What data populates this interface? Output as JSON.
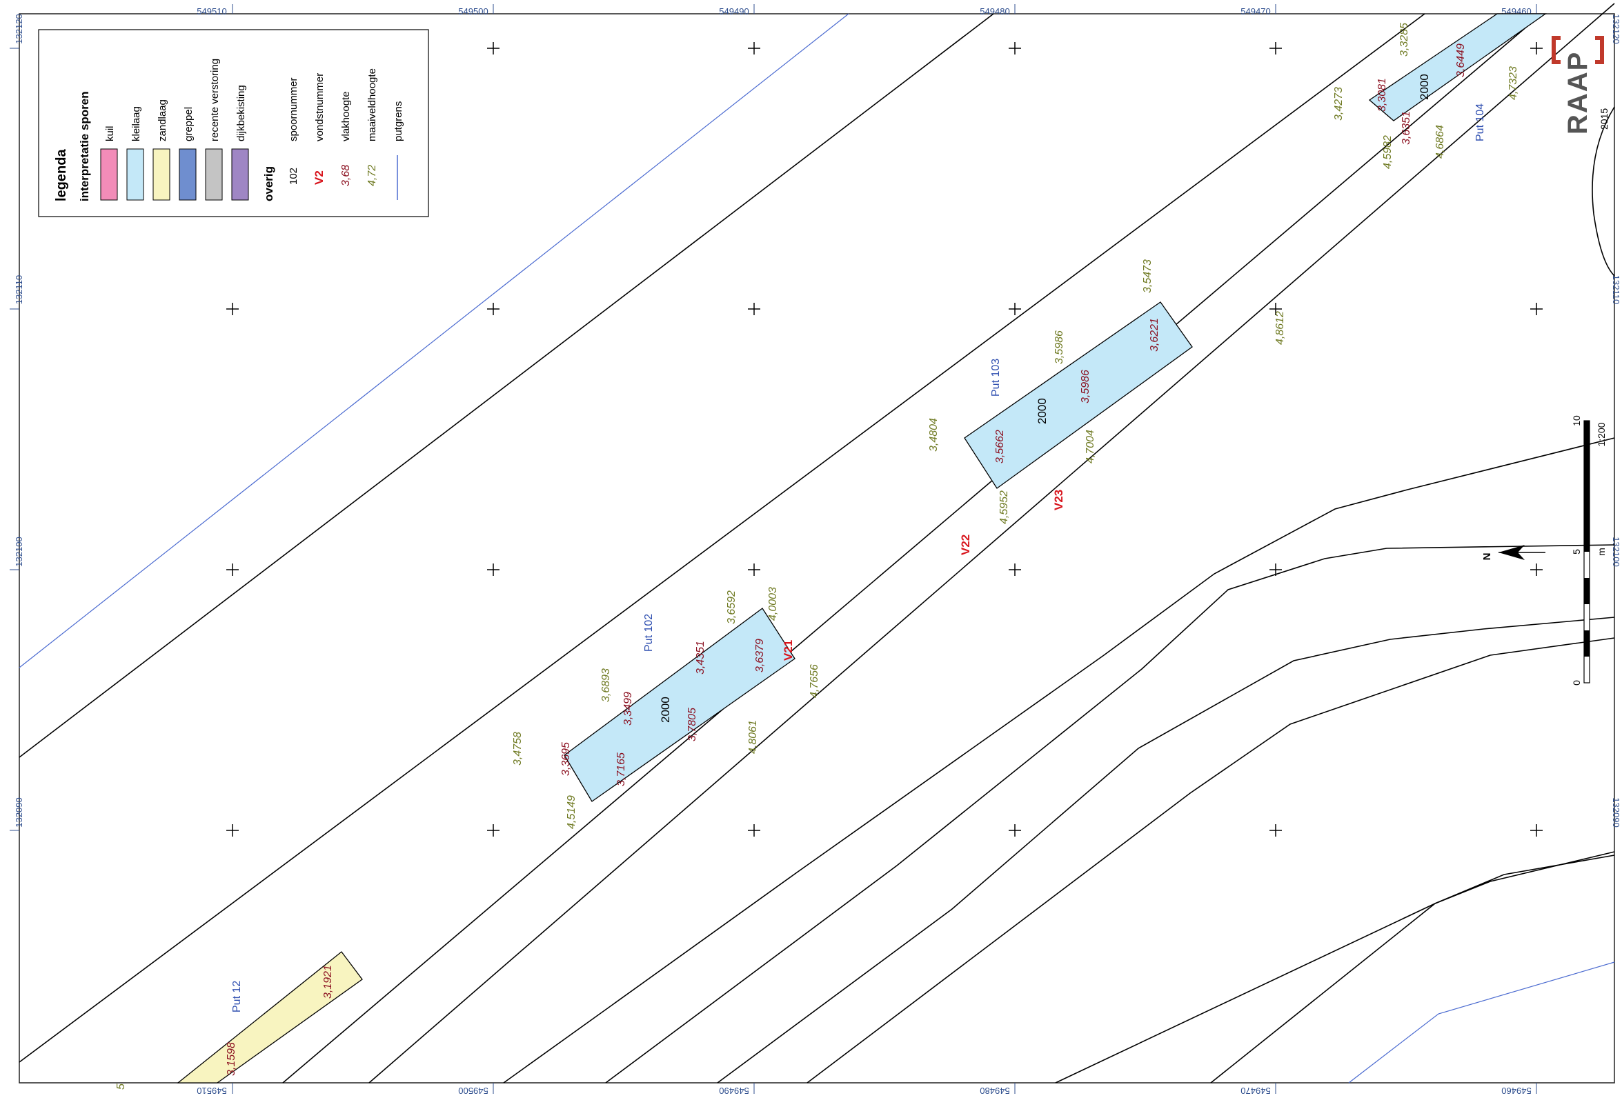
{
  "grid": {
    "x_labels": [
      "549510",
      "549500",
      "549490",
      "549480",
      "549470",
      "549460"
    ],
    "y_labels": [
      "132120",
      "132110",
      "132100",
      "132090"
    ]
  },
  "legend": {
    "title": "legenda",
    "section1": "interpretatie sporen",
    "items": [
      {
        "label": "kuil",
        "color": "#f28cb8"
      },
      {
        "label": "kleilaag",
        "color": "#c4e8f8"
      },
      {
        "label": "zandlaag",
        "color": "#f8f4c0"
      },
      {
        "label": "greppel",
        "color": "#6f8ecf"
      },
      {
        "label": "recente verstoring",
        "color": "#c4c4c4"
      },
      {
        "label": "dijkbekisting",
        "color": "#9f86c4"
      }
    ],
    "section2": "overig",
    "overig": [
      {
        "sample": "102",
        "label": "spoornummer"
      },
      {
        "sample": "V2",
        "label": "vondstnummer"
      },
      {
        "sample": "3,68",
        "label": "vlakhoogte"
      },
      {
        "sample": "4,72",
        "label": "maaiveldhoogte"
      },
      {
        "sample": "",
        "label": "putgrens"
      }
    ]
  },
  "puts": [
    {
      "name": "Put 12",
      "spoor": "",
      "fill": "#f8f4c0"
    },
    {
      "name": "Put 102",
      "spoor": "2000",
      "fill": "#c4e8f8"
    },
    {
      "name": "Put 103",
      "spoor": "2000",
      "fill": "#c4e8f8"
    },
    {
      "name": "Put 104",
      "spoor": "2000",
      "fill": "#c4e8f8"
    }
  ],
  "vlakhoogtes": {
    "put12": [
      "3,1921",
      "3,1598"
    ],
    "put102": [
      "3,3695",
      "3,7165",
      "3,3499",
      "3,7805",
      "3,4351",
      "3,6379"
    ],
    "put103": [
      "3,5662",
      "3,5986",
      "3,6221"
    ],
    "put104": [
      "3,3081",
      "3,6351",
      "3,6449"
    ]
  },
  "maaiveldhoogtes": {
    "put102": [
      "3,4758",
      "4,5149",
      "3,6893",
      "4,8061",
      "3,6592",
      "4,0003",
      "4,7656"
    ],
    "put103": [
      "3,4804",
      "4,5952",
      "3,5986",
      "4,7004",
      "3,5473",
      "4,8612"
    ],
    "put104": [
      "3,4273",
      "4,5982",
      "4,6864",
      "3,3285",
      "4,7323"
    ],
    "misc": [
      "5"
    ]
  },
  "vondsten": [
    "V21",
    "V22",
    "V23"
  ],
  "scalebar": {
    "ticks": [
      "0",
      "5",
      "10"
    ],
    "unit": "m",
    "ratio": "1:200"
  },
  "north": "N",
  "logo": {
    "text": "RAAP",
    "year": "2015"
  }
}
